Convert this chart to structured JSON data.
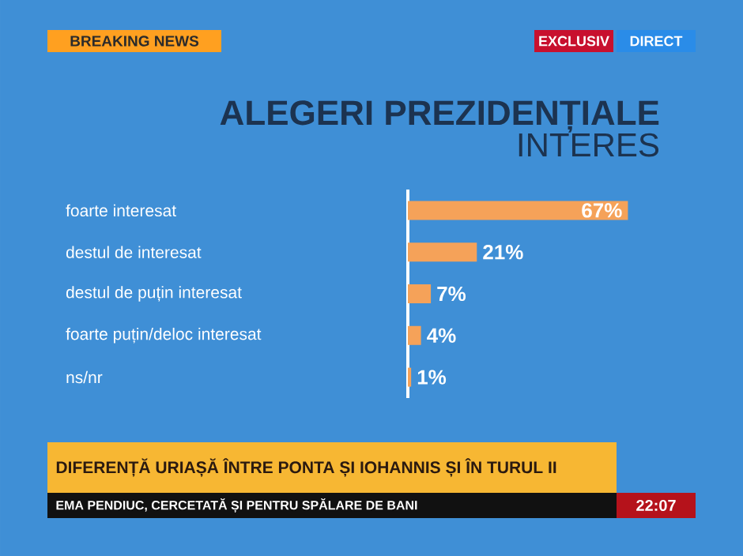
{
  "chart_data": {
    "type": "bar",
    "orientation": "horizontal",
    "title": "ALEGERI PREZIDENȚIALE",
    "subtitle": "INTERES",
    "categories": [
      "foarte interesat",
      "destul de interesat",
      "destul de puțin interesat",
      "foarte puțin/deloc interesat",
      "ns/nr"
    ],
    "values": [
      67,
      21,
      7,
      4,
      1
    ],
    "color": "#f5a259",
    "data_labels": true,
    "value_labels": [
      "67%",
      "21%",
      "7%",
      "4%",
      "1%"
    ],
    "annotations": [
      "BREAKING NEWS",
      "EXCLUSIV",
      "DIRECT",
      "DIFERENȚĂ URIAȘĂ ÎNTRE PONTA ȘI IOHANNIS ȘI ÎN TURUL II",
      "EMA PENDIUC, CERCETATĂ ȘI PENTRU SPĂLARE DE BANI",
      "22:07"
    ]
  }
}
